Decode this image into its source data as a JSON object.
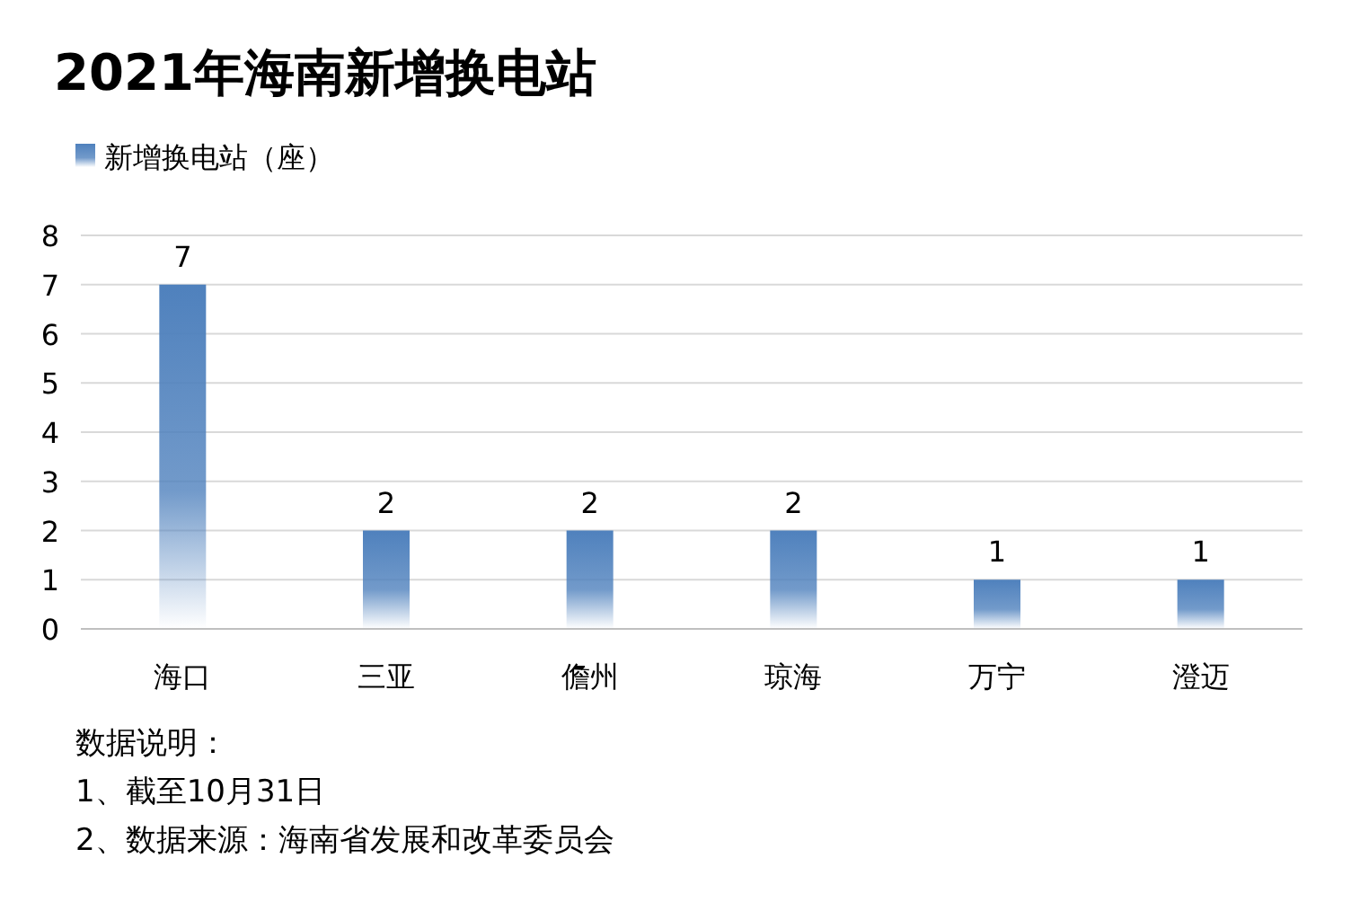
{
  "chart_data": {
    "type": "bar",
    "title": "2021年海南新增换电站",
    "categories": [
      "海口",
      "三亚",
      "儋州",
      "琼海",
      "万宁",
      "澄迈"
    ],
    "series": [
      {
        "name": "新增换电站（座）",
        "color": "#4f81bd",
        "values": [
          7,
          2,
          2,
          2,
          1,
          1
        ]
      }
    ],
    "ylim": [
      0,
      8
    ],
    "yticks": [
      0,
      1,
      2,
      3,
      4,
      5,
      6,
      7,
      8
    ],
    "grid": "y",
    "legend": "top left",
    "data_labels": true,
    "annotations": [
      "数据说明：",
      "1、截至10月31日",
      "2、数据来源：海南省发展和改革委员会"
    ]
  }
}
